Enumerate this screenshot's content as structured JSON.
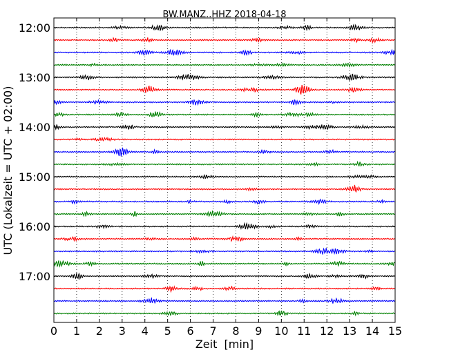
{
  "chart_data": {
    "type": "line",
    "subtype": "seismic-dayplot",
    "title": "BW.MANZ..HHZ 2018-04-18",
    "xlabel": "Zeit  [min]",
    "ylabel": "UTC (Lokalzeit = UTC + 02:00)",
    "xlim": [
      0,
      15
    ],
    "x_ticks": [
      "0",
      "1",
      "2",
      "3",
      "4",
      "5",
      "6",
      "7",
      "8",
      "9",
      "10",
      "11",
      "12",
      "13",
      "14",
      "15"
    ],
    "y_ticks": [
      "12:00",
      "13:00",
      "14:00",
      "15:00",
      "16:00",
      "17:00"
    ],
    "trace_interval_minutes": 15,
    "trace_count": 24,
    "trace_colors": [
      "#000000",
      "#ff0000",
      "#0000ff",
      "#008000"
    ],
    "grid": {
      "x": "dotted",
      "y": false
    },
    "legend": "none"
  }
}
